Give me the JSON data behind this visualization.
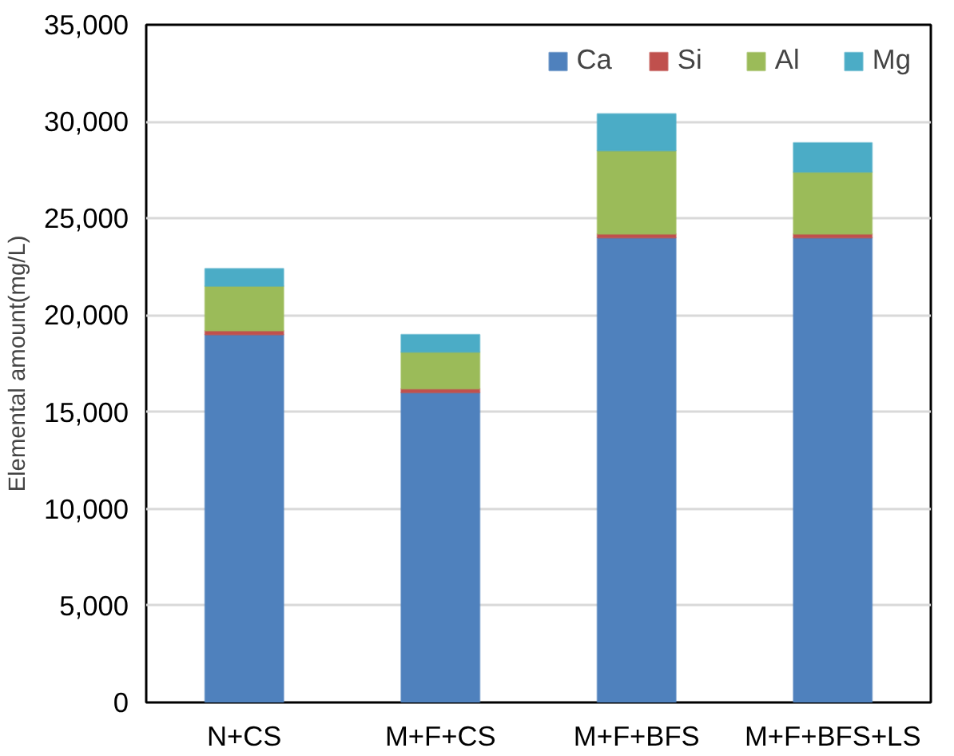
{
  "chart_data": {
    "type": "bar",
    "stacked": true,
    "ylabel": "Elemental amount(mg/L)",
    "categories": [
      "N+CS",
      "M+F+CS",
      "M+F+BFS",
      "M+F+BFS+LS"
    ],
    "series": [
      {
        "name": "Ca",
        "color": "#4f81bd",
        "values": [
          19000,
          16000,
          24000,
          24000
        ]
      },
      {
        "name": "Si",
        "color": "#c0504d",
        "values": [
          200,
          200,
          200,
          200
        ]
      },
      {
        "name": "Al",
        "color": "#9bbb59",
        "values": [
          2300,
          1900,
          4300,
          3200
        ]
      },
      {
        "name": "Mg",
        "color": "#4bacc6",
        "values": [
          900,
          900,
          1900,
          1500
        ]
      }
    ],
    "ylim": [
      0,
      35000
    ],
    "yticks": [
      {
        "value": 0,
        "label": "0"
      },
      {
        "value": 5000,
        "label": "5,000"
      },
      {
        "value": 10000,
        "label": "10,000"
      },
      {
        "value": 15000,
        "label": "15,000"
      },
      {
        "value": 20000,
        "label": "20,000"
      },
      {
        "value": 25000,
        "label": "25,000"
      },
      {
        "value": 30000,
        "label": "30,000"
      },
      {
        "value": 35000,
        "label": "35,000"
      }
    ],
    "grid": "y",
    "legend": "top right"
  }
}
